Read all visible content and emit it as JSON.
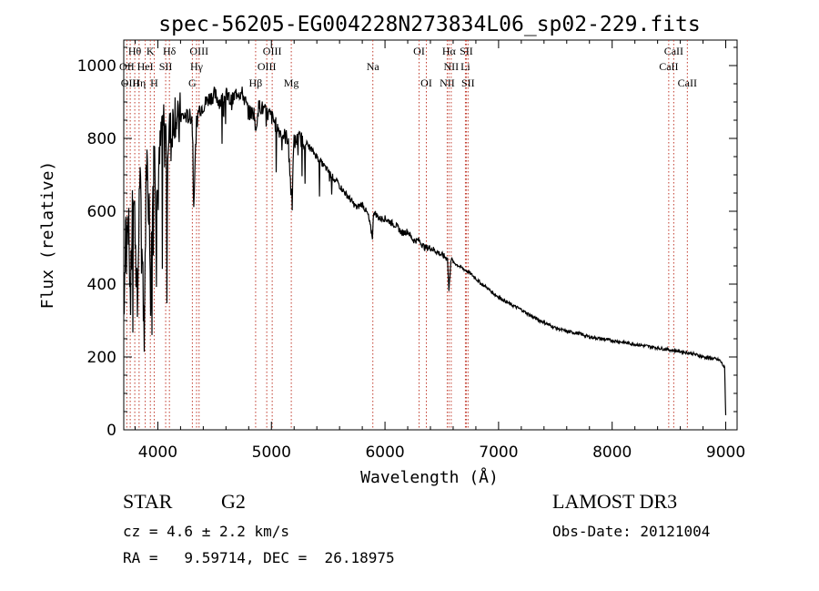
{
  "chart_data": {
    "type": "line",
    "title": "spec-56205-EG004228N273834L06_sp02-229.fits",
    "xlabel": "Wavelength (Å)",
    "ylabel": "Flux (relative)",
    "xlim": [
      3700,
      9100
    ],
    "ylim": [
      0,
      1070
    ],
    "x_ticks": [
      4000,
      5000,
      6000,
      7000,
      8000,
      9000
    ],
    "y_ticks": [
      0,
      200,
      400,
      600,
      800,
      1000
    ],
    "series": [
      {
        "name": "flux",
        "x": [
          3700,
          3720,
          3740,
          3760,
          3780,
          3800,
          3820,
          3840,
          3860,
          3880,
          3900,
          3920,
          3940,
          3960,
          3980,
          4000,
          4020,
          4040,
          4060,
          4080,
          4100,
          4120,
          4140,
          4160,
          4180,
          4200,
          4250,
          4300,
          4320,
          4340,
          4360,
          4400,
          4450,
          4500,
          4550,
          4600,
          4650,
          4700,
          4750,
          4800,
          4850,
          4862,
          4880,
          4900,
          4950,
          5000,
          5050,
          5100,
          5150,
          5175,
          5200,
          5250,
          5300,
          5350,
          5400,
          5450,
          5500,
          5550,
          5600,
          5650,
          5700,
          5750,
          5800,
          5850,
          5890,
          5900,
          5950,
          6000,
          6050,
          6100,
          6150,
          6200,
          6250,
          6300,
          6350,
          6400,
          6450,
          6500,
          6550,
          6563,
          6580,
          6600,
          6650,
          6700,
          6750,
          6800,
          6850,
          6900,
          6950,
          7000,
          7100,
          7200,
          7300,
          7400,
          7500,
          7600,
          7700,
          7800,
          7900,
          8000,
          8100,
          8200,
          8300,
          8400,
          8500,
          8600,
          8700,
          8800,
          8900,
          8950,
          8990,
          9000
        ],
        "y": [
          320,
          620,
          580,
          350,
          680,
          560,
          320,
          700,
          520,
          280,
          760,
          640,
          420,
          810,
          700,
          640,
          760,
          860,
          840,
          780,
          820,
          800,
          870,
          880,
          820,
          860,
          860,
          860,
          660,
          840,
          880,
          890,
          910,
          920,
          900,
          920,
          900,
          930,
          920,
          870,
          870,
          810,
          880,
          890,
          870,
          860,
          830,
          810,
          800,
          630,
          790,
          800,
          790,
          770,
          750,
          730,
          710,
          690,
          670,
          650,
          630,
          610,
          620,
          590,
          530,
          600,
          580,
          580,
          570,
          560,
          540,
          545,
          520,
          520,
          500,
          500,
          490,
          480,
          470,
          380,
          470,
          460,
          450,
          440,
          430,
          415,
          400,
          390,
          375,
          365,
          345,
          330,
          310,
          295,
          280,
          270,
          265,
          255,
          250,
          245,
          240,
          235,
          230,
          225,
          220,
          215,
          210,
          200,
          195,
          190,
          170,
          40
        ]
      }
    ],
    "line_labels": [
      {
        "text": "Hθ",
        "wave": 3797,
        "row": 1
      },
      {
        "text": "OII",
        "wave": 3727,
        "row": 2
      },
      {
        "text": "OIII",
        "wave": 3757,
        "row": 3
      },
      {
        "text": "K",
        "wave": 3934,
        "row": 1
      },
      {
        "text": "HeI",
        "wave": 3889,
        "row": 2
      },
      {
        "text": "Hη",
        "wave": 3835,
        "row": 3
      },
      {
        "text": "SII",
        "wave": 4069,
        "row": 2
      },
      {
        "text": "H",
        "wave": 3968,
        "row": 3
      },
      {
        "text": "Hδ",
        "wave": 4102,
        "row": 1
      },
      {
        "text": "OIII",
        "wave": 4363,
        "row": 1
      },
      {
        "text": "Hγ",
        "wave": 4341,
        "row": 2
      },
      {
        "text": "G",
        "wave": 4304,
        "row": 3
      },
      {
        "text": "OIII",
        "wave": 5007,
        "row": 1
      },
      {
        "text": "OIII",
        "wave": 4959,
        "row": 2
      },
      {
        "text": "Hβ",
        "wave": 4861,
        "row": 3
      },
      {
        "text": "Mg",
        "wave": 5175,
        "row": 3
      },
      {
        "text": "Na",
        "wave": 5893,
        "row": 2
      },
      {
        "text": "OI",
        "wave": 6300,
        "row": 1
      },
      {
        "text": "OI",
        "wave": 6364,
        "row": 3
      },
      {
        "text": "Hα",
        "wave": 6563,
        "row": 1
      },
      {
        "text": "NII",
        "wave": 6583,
        "row": 2
      },
      {
        "text": "NII",
        "wave": 6548,
        "row": 3
      },
      {
        "text": "SII",
        "wave": 6716,
        "row": 1
      },
      {
        "text": "Li",
        "wave": 6708,
        "row": 2
      },
      {
        "text": "SII",
        "wave": 6731,
        "row": 3
      },
      {
        "text": "CaII",
        "wave": 8542,
        "row": 1
      },
      {
        "text": "CaII",
        "wave": 8498,
        "row": 2
      },
      {
        "text": "CaII",
        "wave": 8662,
        "row": 3
      }
    ]
  },
  "info": {
    "class_label": "STAR",
    "subclass": "G2",
    "survey": "LAMOST DR3",
    "cz": "cz = 4.6 ± 2.2 km/s",
    "obs_date": "Obs-Date: 20121004",
    "coords": "RA =   9.59714, DEC =  26.18975"
  }
}
